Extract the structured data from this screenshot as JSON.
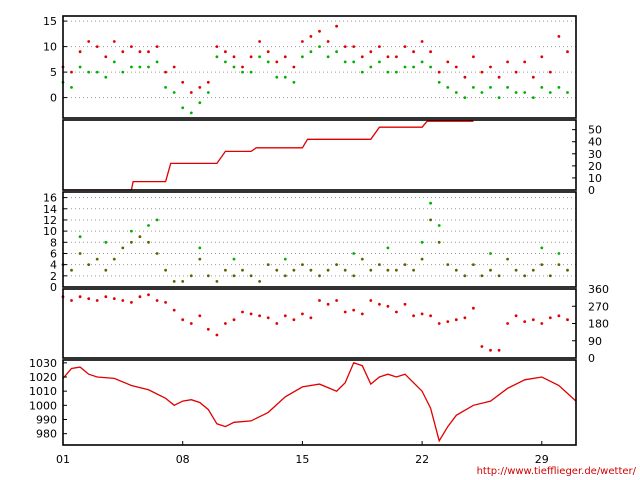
{
  "credit": "http://www.tiefflieger.de/wetter/",
  "colors": {
    "red": "#e00000",
    "green": "#00b000",
    "olive": "#606000",
    "grid": "#999999"
  },
  "x_axis": {
    "range": [
      1,
      31
    ],
    "ticks": [
      1,
      8,
      15,
      22,
      29
    ],
    "tick_labels": [
      "01",
      "08",
      "15",
      "22",
      "29"
    ]
  },
  "chart_data": [
    {
      "id": "temperature",
      "type": "scatter",
      "axis_side": "left",
      "ylim": [
        -4,
        16
      ],
      "yticks": [
        0,
        5,
        10,
        15
      ],
      "grid": true,
      "series": [
        {
          "color": "red",
          "x": [
            1,
            1.5,
            2,
            2.5,
            3,
            3.5,
            4,
            4.5,
            5,
            5.5,
            6,
            6.5,
            7,
            7.5,
            8,
            8.5,
            9,
            9.5,
            10,
            10.5,
            11,
            11.5,
            12,
            12.5,
            13,
            13.5,
            14,
            14.5,
            15,
            15.5,
            16,
            16.5,
            17,
            17.5,
            18,
            18.5,
            19,
            19.5,
            20,
            20.5,
            21,
            21.5,
            22,
            22.5,
            23,
            23.5,
            24,
            24.5,
            25,
            25.5,
            26,
            26.5,
            27,
            27.5,
            28,
            28.5,
            29,
            29.5,
            30,
            30.5
          ],
          "y": [
            6,
            5,
            9,
            11,
            10,
            8,
            11,
            9,
            10,
            9,
            9,
            10,
            5,
            6,
            3,
            1,
            2,
            3,
            10,
            9,
            8,
            6,
            8,
            11,
            9,
            7,
            8,
            6,
            11,
            12,
            13,
            11,
            14,
            10,
            10,
            8,
            9,
            10,
            8,
            8,
            10,
            9,
            11,
            9,
            5,
            7,
            6,
            4,
            8,
            5,
            6,
            4,
            7,
            5,
            7,
            4,
            8,
            5,
            12,
            9
          ]
        },
        {
          "color": "green",
          "x": [
            1,
            1.5,
            2,
            2.5,
            3,
            3.5,
            4,
            4.5,
            5,
            5.5,
            6,
            6.5,
            7,
            7.5,
            8,
            8.5,
            9,
            9.5,
            10,
            10.5,
            11,
            11.5,
            12,
            12.5,
            13,
            13.5,
            14,
            14.5,
            15,
            15.5,
            16,
            16.5,
            17,
            17.5,
            18,
            18.5,
            19,
            19.5,
            20,
            20.5,
            21,
            21.5,
            22,
            22.5,
            23,
            23.5,
            24,
            24.5,
            25,
            25.5,
            26,
            26.5,
            27,
            27.5,
            28,
            28.5,
            29,
            29.5,
            30,
            30.5
          ],
          "y": [
            3,
            2,
            6,
            5,
            5,
            4,
            7,
            5,
            6,
            6,
            6,
            7,
            2,
            1,
            -2,
            -3,
            -1,
            1,
            8,
            7,
            6,
            5,
            5,
            8,
            7,
            4,
            4,
            3,
            8,
            9,
            10,
            8,
            9,
            7,
            7,
            5,
            6,
            7,
            5,
            5,
            6,
            6,
            7,
            6,
            3,
            2,
            1,
            0,
            2,
            1,
            2,
            0,
            2,
            1,
            1,
            0,
            2,
            1,
            2,
            1
          ]
        }
      ]
    },
    {
      "id": "precipitation-cumulative",
      "type": "line",
      "axis_side": "right",
      "ylim": [
        0,
        58
      ],
      "yticks": [
        0,
        10,
        20,
        30,
        40,
        50
      ],
      "grid": false,
      "series": [
        {
          "color": "red",
          "x": [
            1,
            5,
            5.1,
            7,
            7.3,
            10,
            10.5,
            12,
            12.3,
            15,
            15.3,
            19,
            19.5,
            22,
            22.3,
            25
          ],
          "y": [
            0,
            0,
            7,
            7,
            22,
            22,
            32,
            32,
            35,
            35,
            42,
            42,
            52,
            52,
            57,
            57
          ]
        }
      ]
    },
    {
      "id": "wind-speed",
      "type": "scatter",
      "axis_side": "left",
      "ylim": [
        0,
        17
      ],
      "yticks": [
        0,
        2,
        4,
        6,
        8,
        10,
        12,
        14,
        16
      ],
      "grid": true,
      "series": [
        {
          "color": "olive",
          "x": [
            1,
            1.5,
            2,
            2.5,
            3,
            3.5,
            4,
            4.5,
            5,
            5.5,
            6,
            6.5,
            7,
            7.5,
            8,
            8.5,
            9,
            9.5,
            10,
            10.5,
            11,
            11.5,
            12,
            12.5,
            13,
            13.5,
            14,
            14.5,
            15,
            15.5,
            16,
            16.5,
            17,
            17.5,
            18,
            18.5,
            19,
            19.5,
            20,
            20.5,
            21,
            21.5,
            22,
            22.5,
            23,
            23.5,
            24,
            24.5,
            25,
            25.5,
            26,
            26.5,
            27,
            27.5,
            28,
            28.5,
            29,
            29.5,
            30,
            30.5
          ],
          "y": [
            4,
            3,
            6,
            4,
            5,
            3,
            5,
            7,
            8,
            9,
            8,
            6,
            3,
            1,
            1,
            2,
            5,
            2,
            1,
            3,
            2,
            3,
            2,
            1,
            4,
            3,
            2,
            3,
            4,
            3,
            2,
            3,
            4,
            3,
            2,
            5,
            3,
            4,
            3,
            3,
            4,
            3,
            5,
            12,
            8,
            4,
            3,
            2,
            4,
            2,
            3,
            2,
            5,
            3,
            2,
            3,
            4,
            2,
            4,
            3
          ]
        },
        {
          "color": "green",
          "x": [
            2,
            3.5,
            5,
            6,
            6.5,
            9,
            11,
            14,
            18,
            20,
            22,
            22.5,
            23,
            26,
            29,
            30
          ],
          "y": [
            9,
            8,
            10,
            11,
            12,
            7,
            5,
            5,
            6,
            7,
            8,
            15,
            11,
            6,
            7,
            6
          ]
        }
      ]
    },
    {
      "id": "wind-direction",
      "type": "scatter",
      "axis_side": "right",
      "ylim": [
        0,
        360
      ],
      "yticks": [
        0,
        90,
        180,
        270,
        360
      ],
      "grid": false,
      "series": [
        {
          "color": "red",
          "x": [
            1,
            1.5,
            2,
            2.5,
            3,
            3.5,
            4,
            4.5,
            5,
            5.5,
            6,
            6.5,
            7,
            7.5,
            8,
            8.5,
            9,
            9.5,
            10,
            10.5,
            11,
            11.5,
            12,
            12.5,
            13,
            13.5,
            14,
            14.5,
            15,
            15.5,
            16,
            16.5,
            17,
            17.5,
            18,
            18.5,
            19,
            19.5,
            20,
            20.5,
            21,
            21.5,
            22,
            22.5,
            23,
            23.5,
            24,
            24.5,
            25,
            25.5,
            26,
            26.5,
            27,
            27.5,
            28,
            28.5,
            29,
            29.5,
            30,
            30.5
          ],
          "y": [
            320,
            300,
            320,
            310,
            300,
            320,
            310,
            300,
            290,
            320,
            330,
            300,
            290,
            250,
            200,
            180,
            220,
            150,
            120,
            180,
            200,
            240,
            230,
            220,
            210,
            180,
            220,
            200,
            230,
            210,
            300,
            280,
            300,
            240,
            250,
            230,
            300,
            280,
            270,
            240,
            280,
            220,
            230,
            220,
            180,
            190,
            200,
            210,
            260,
            60,
            40,
            40,
            180,
            220,
            190,
            200,
            180,
            210,
            220,
            200
          ]
        }
      ]
    },
    {
      "id": "pressure",
      "type": "line",
      "axis_side": "left",
      "ylim": [
        972,
        1032
      ],
      "yticks": [
        980,
        990,
        1000,
        1010,
        1020,
        1030
      ],
      "grid": false,
      "series": [
        {
          "color": "red",
          "x": [
            1,
            1.5,
            2,
            2.5,
            3,
            4,
            5,
            6,
            7,
            7.5,
            8,
            8.5,
            9,
            9.5,
            10,
            10.5,
            11,
            12,
            13,
            14,
            15,
            16,
            17,
            17.5,
            18,
            18.5,
            19,
            19.5,
            20,
            20.5,
            21,
            22,
            22.5,
            23,
            23.5,
            24,
            25,
            26,
            27,
            28,
            29,
            30,
            31
          ],
          "y": [
            1019,
            1026,
            1027,
            1022,
            1020,
            1019,
            1014,
            1011,
            1005,
            1000,
            1003,
            1004,
            1002,
            997,
            987,
            985,
            988,
            989,
            995,
            1006,
            1013,
            1015,
            1010,
            1016,
            1030,
            1028,
            1015,
            1020,
            1022,
            1020,
            1022,
            1010,
            998,
            975,
            985,
            993,
            1000,
            1003,
            1012,
            1018,
            1020,
            1014,
            1003
          ]
        }
      ]
    }
  ]
}
